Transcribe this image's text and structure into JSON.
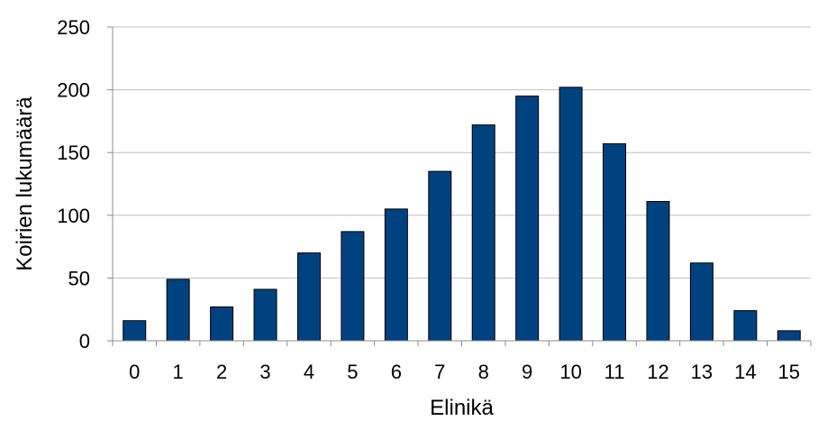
{
  "chart_data": {
    "type": "bar",
    "title": "",
    "xlabel": "Elinikä",
    "ylabel": "Koirien lukumäärä",
    "categories": [
      "0",
      "1",
      "2",
      "3",
      "4",
      "5",
      "6",
      "7",
      "8",
      "9",
      "10",
      "11",
      "12",
      "13",
      "14",
      "15"
    ],
    "values": [
      16,
      49,
      27,
      41,
      70,
      87,
      105,
      135,
      172,
      195,
      202,
      157,
      111,
      62,
      24,
      8
    ],
    "ylim": [
      0,
      250
    ],
    "yticks": [
      0,
      50,
      100,
      150,
      200,
      250
    ],
    "grid": true,
    "legend": "none",
    "colors": {
      "bar": "#00427f",
      "bar_edge": "#000000",
      "grid": "#bfbfbf",
      "axis": "#8c8c8c"
    }
  }
}
